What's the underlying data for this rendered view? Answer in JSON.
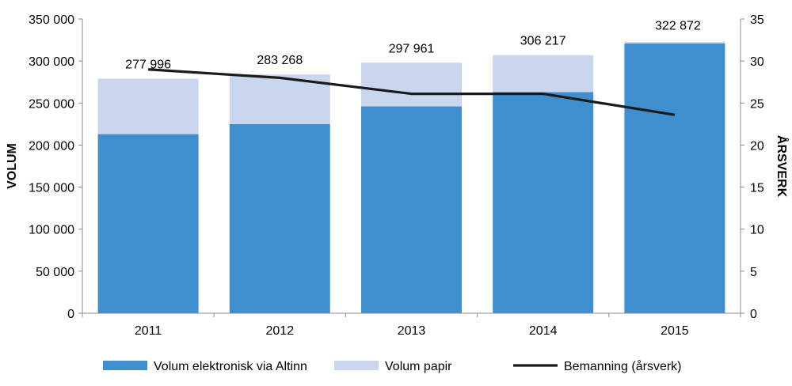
{
  "chart_data": {
    "type": "bar",
    "stacked": true,
    "categories": [
      "2011",
      "2012",
      "2013",
      "2014",
      "2015"
    ],
    "series": [
      {
        "name": "Volum elektronisk via Altinn",
        "kind": "bar",
        "axis": "left",
        "color": "#3f8fcf",
        "values": [
          213000,
          225000,
          246000,
          263000,
          321000
        ]
      },
      {
        "name": "Volum papir",
        "kind": "bar",
        "axis": "left",
        "color": "#c9d6ee",
        "values": [
          66000,
          59000,
          52000,
          44000,
          2000
        ]
      },
      {
        "name": "Bemanning (årsverk)",
        "kind": "line",
        "axis": "right",
        "color": "#1a1a1a",
        "values": [
          29,
          28,
          26.1,
          26.1,
          23.6
        ]
      }
    ],
    "data_labels": [
      "277 996",
      "283 268",
      "297 961",
      "306 217",
      "322 872"
    ],
    "ylabel": "VOLUM",
    "y2label": "ÅRSVERK",
    "ylim": [
      0,
      350000
    ],
    "y2lim": [
      0,
      35
    ],
    "y_ticks": [
      "0",
      "50 000",
      "100 000",
      "150 000",
      "200 000",
      "250 000",
      "300 000",
      "350 000"
    ],
    "y2_ticks": [
      "0",
      "5",
      "10",
      "15",
      "20",
      "25",
      "30",
      "35"
    ],
    "legend_position": "bottom",
    "grid": false
  }
}
